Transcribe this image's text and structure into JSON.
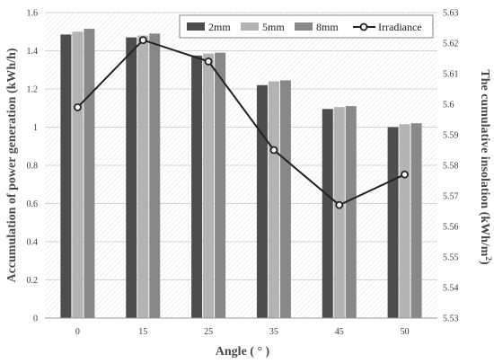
{
  "chart_data": {
    "type": "bar",
    "categories": [
      "0",
      "15",
      "25",
      "35",
      "45",
      "50"
    ],
    "series": [
      {
        "name": "2mm",
        "values": [
          1.485,
          1.47,
          1.375,
          1.22,
          1.095,
          1.0
        ],
        "color": "#4d4d4d"
      },
      {
        "name": "5mm",
        "values": [
          1.5,
          1.48,
          1.385,
          1.24,
          1.105,
          1.015
        ],
        "color": "#b3b3b3"
      },
      {
        "name": "8mm",
        "values": [
          1.515,
          1.49,
          1.39,
          1.245,
          1.11,
          1.02
        ],
        "color": "#888888"
      }
    ],
    "line_series": {
      "name": "Irradiance",
      "values": [
        5.599,
        5.621,
        5.614,
        5.585,
        5.567,
        5.577
      ],
      "color": "#222222"
    },
    "xlabel": "Angle ( ° )",
    "ylabel": "Accumulation of power generation (kWh/h)",
    "y2label_main": "The cumulative insolation (kWh/m",
    "y2label_sup": "2",
    "y2label_close": ")",
    "ylim": [
      0,
      1.6
    ],
    "y2lim": [
      5.53,
      5.63
    ],
    "yticks": [
      "0",
      "0.2",
      "0.4",
      "0.6",
      "0.8",
      "1",
      "1.2",
      "1.4",
      "1.6"
    ],
    "y2ticks": [
      "5.53",
      "5.54",
      "5.55",
      "5.56",
      "5.57",
      "5.58",
      "5.59",
      "5.6",
      "5.61",
      "5.62",
      "5.63"
    ],
    "grid": true,
    "legend_position": "top-right"
  }
}
